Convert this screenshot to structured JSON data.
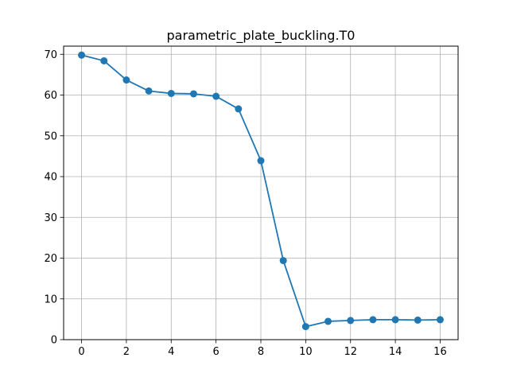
{
  "chart_data": {
    "type": "line",
    "title": "parametric_plate_buckling.T0",
    "xlabel": "",
    "ylabel": "",
    "x": [
      0,
      1,
      2,
      3,
      4,
      5,
      6,
      7,
      8,
      9,
      10,
      11,
      12,
      13,
      14,
      15,
      16
    ],
    "series": [
      {
        "values": [
          69.8,
          68.4,
          63.7,
          61.0,
          60.4,
          60.3,
          59.7,
          56.6,
          43.9,
          19.4,
          3.2,
          4.5,
          4.7,
          4.9,
          4.9,
          4.8,
          4.9
        ],
        "color": "#1f77b4",
        "marker": "circle"
      }
    ],
    "xlim": [
      -0.8,
      16.8
    ],
    "ylim": [
      0,
      72
    ],
    "xticks": [
      0,
      2,
      4,
      6,
      8,
      10,
      12,
      14,
      16
    ],
    "yticks": [
      0,
      10,
      20,
      30,
      40,
      50,
      60,
      70
    ],
    "grid": true,
    "legend": "none"
  }
}
